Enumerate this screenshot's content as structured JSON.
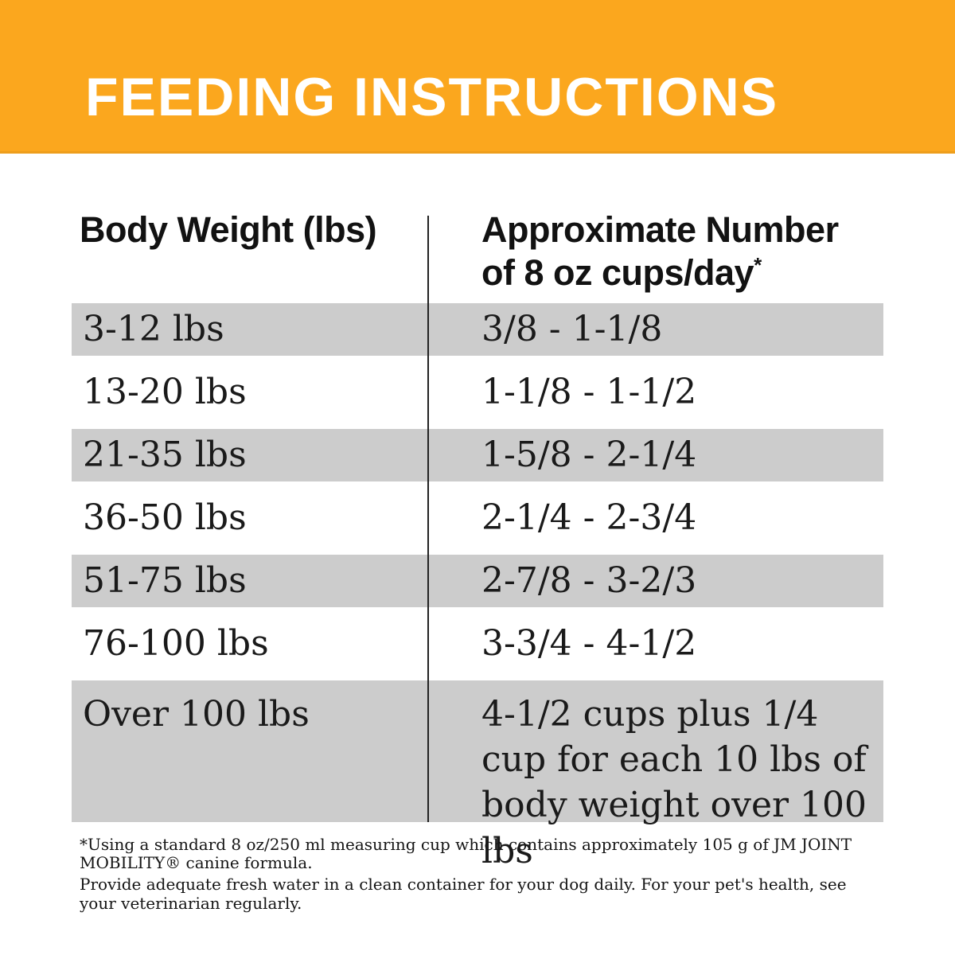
{
  "banner": {
    "title": "FEEDING INSTRUCTIONS",
    "bg_color": "#FBA71E",
    "text_color": "#FFFFFF"
  },
  "table": {
    "header_left": "Body Weight (lbs)",
    "header_right_line1": "Approximate Number",
    "header_right_line2": "of 8 oz cups/day",
    "header_right_marker": "*",
    "row_shade_color": "#CCCCCC",
    "rows": [
      {
        "weight": "3-12 lbs",
        "cups": "3/8 - 1-1/8",
        "shaded": true
      },
      {
        "weight": "13-20 lbs",
        "cups": "1-1/8 - 1-1/2",
        "shaded": false
      },
      {
        "weight": "21-35 lbs",
        "cups": "1-5/8 - 2-1/4",
        "shaded": true
      },
      {
        "weight": "36-50 lbs",
        "cups": "2-1/4 - 2-3/4",
        "shaded": false
      },
      {
        "weight": "51-75 lbs",
        "cups": "2-7/8 - 3-2/3",
        "shaded": true
      },
      {
        "weight": "76-100 lbs",
        "cups": "3-3/4 - 4-1/2",
        "shaded": false
      },
      {
        "weight": "Over 100 lbs",
        "cups": "4-1/2 cups plus 1/4 cup for each 10 lbs of body weight over 100 lbs",
        "shaded": true
      }
    ]
  },
  "footnote": {
    "line1": "*Using a standard 8 oz/250 ml measuring cup which contains approximately 105 g of JM JOINT MOBILITY® canine formula.",
    "line2": "Provide adequate fresh water in a clean container for your dog daily. For your pet's health, see your veterinarian regularly."
  }
}
